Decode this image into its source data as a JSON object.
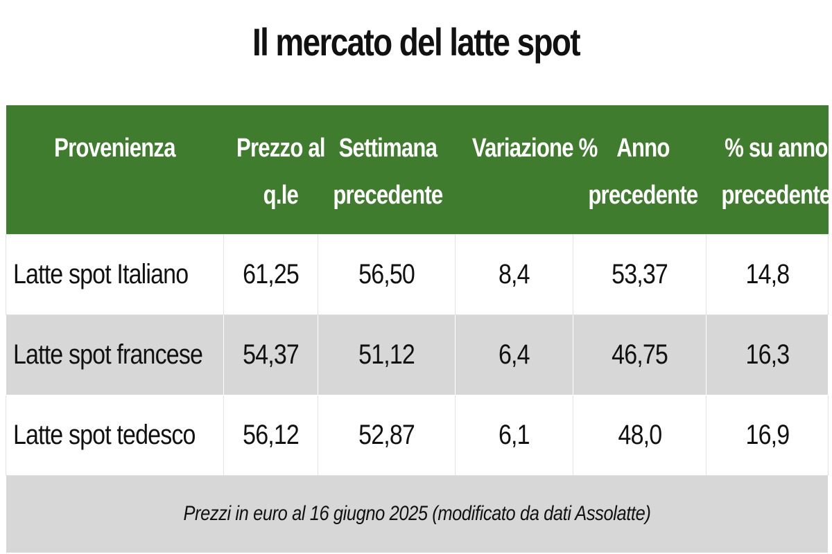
{
  "title": "Il mercato del latte spot",
  "table": {
    "headers": [
      [
        "Provenienza"
      ],
      [
        "Prezzo al",
        "q.le"
      ],
      [
        "Settimana",
        "precedente"
      ],
      [
        "Variazione %"
      ],
      [
        "Anno",
        "precedente"
      ],
      [
        "% su anno",
        "precedente"
      ]
    ],
    "rows": [
      [
        "Latte spot Italiano",
        "61,25",
        "56,50",
        "8,4",
        "53,37",
        "14,8"
      ],
      [
        "Latte spot francese",
        "54,37",
        "51,12",
        "6,4",
        "46,75",
        "16,3"
      ],
      [
        "Latte spot tedesco",
        "56,12",
        "52,87",
        "6,1",
        "48,0",
        "16,9"
      ]
    ],
    "footnote": "Prezzi in euro al 16 giugno 2025 (modificato da dati Assolatte)"
  },
  "colors": {
    "header_bg": "#3f7c2e",
    "header_text": "#ffffff",
    "stripe": "#d7d7d7"
  }
}
